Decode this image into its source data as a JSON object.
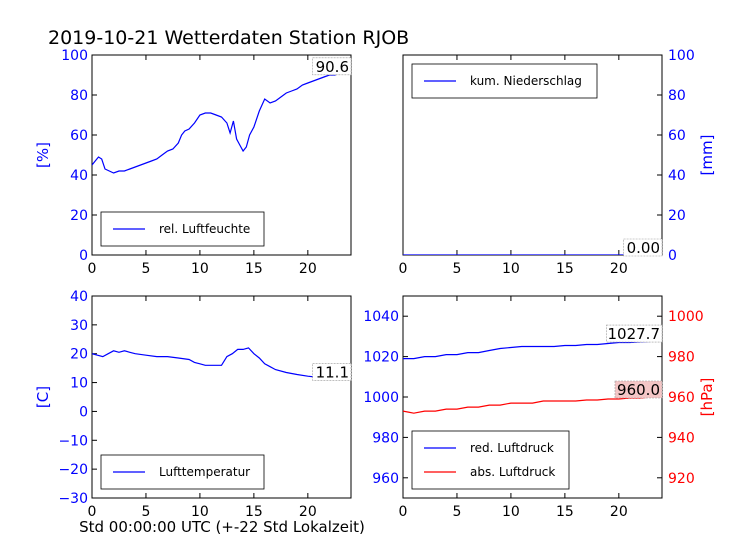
{
  "title": "2019-10-21 Wetterdaten Station RJOB",
  "xlabel": "Std 00:00:00 UTC (+-22 Std Lokalzeit)",
  "colors": {
    "blue": "#0000ff",
    "red": "#ff0000",
    "black": "#000000",
    "value_box": "#f4c6c6"
  },
  "chart_data": [
    {
      "type": "line",
      "panel": "top-left",
      "ylabel": "[%]",
      "xlim": [
        0,
        24
      ],
      "ylim": [
        0,
        100
      ],
      "xticks": [
        "0",
        "5",
        "10",
        "15",
        "20"
      ],
      "yticks": [
        "0",
        "20",
        "40",
        "60",
        "80",
        "100"
      ],
      "legend": "bottom-left",
      "annotation": "90.6",
      "series": [
        {
          "name": "rel. Luftfeuchte",
          "color": "#0000ff",
          "x": [
            0,
            0.3,
            0.6,
            0.9,
            1.2,
            1.6,
            2.0,
            2.5,
            3.0,
            3.5,
            4.0,
            4.5,
            5.0,
            5.5,
            6.0,
            6.5,
            7.0,
            7.5,
            8.0,
            8.3,
            8.6,
            9.0,
            9.5,
            10.0,
            10.5,
            11.0,
            11.5,
            12.0,
            12.5,
            12.8,
            13.1,
            13.4,
            13.7,
            14.0,
            14.3,
            14.6,
            15.0,
            15.5,
            16.0,
            16.5,
            17.0,
            17.5,
            18.0,
            18.5,
            19.0,
            19.5,
            20.0,
            20.5,
            21.0,
            21.5,
            22.0,
            22.5,
            23.0,
            23.5,
            24.0
          ],
          "y": [
            45,
            47,
            49,
            48,
            43,
            42,
            41,
            42,
            42,
            43,
            44,
            45,
            46,
            47,
            48,
            50,
            52,
            53,
            56,
            60,
            62,
            63,
            66,
            70,
            71,
            71,
            70,
            69,
            66,
            61,
            67,
            58,
            55,
            52,
            54,
            60,
            64,
            72,
            78,
            76,
            77,
            79,
            81,
            82,
            83,
            85,
            86,
            87,
            88,
            89,
            90,
            90,
            91,
            90.6,
            90.6
          ]
        }
      ]
    },
    {
      "type": "line",
      "panel": "top-right",
      "ylabel": "[mm]",
      "xlim": [
        0,
        24
      ],
      "ylim": [
        0,
        100
      ],
      "xticks": [
        "0",
        "5",
        "10",
        "15",
        "20"
      ],
      "yticks": [
        "0",
        "20",
        "40",
        "60",
        "80",
        "100"
      ],
      "legend": "top-left",
      "annotation": "0.00",
      "series": [
        {
          "name": "kum. Niederschlag",
          "color": "#0000ff",
          "x": [
            0,
            24
          ],
          "y": [
            0,
            0
          ]
        }
      ]
    },
    {
      "type": "line",
      "panel": "bottom-left",
      "ylabel": "[C]",
      "xlim": [
        0,
        24
      ],
      "ylim": [
        -30,
        40
      ],
      "xticks": [
        "0",
        "5",
        "10",
        "15",
        "20"
      ],
      "yticks": [
        "−30",
        "−20",
        "−10",
        "0",
        "10",
        "20",
        "30",
        "40"
      ],
      "legend": "bottom-left",
      "annotation": "11.1",
      "series": [
        {
          "name": "Lufttemperatur",
          "color": "#0000ff",
          "x": [
            0,
            0.5,
            1.0,
            1.5,
            2.0,
            2.5,
            3.0,
            3.5,
            4.0,
            5.0,
            6.0,
            7.0,
            8.0,
            9.0,
            9.5,
            10.0,
            10.5,
            11.0,
            11.5,
            12.0,
            12.5,
            13.0,
            13.5,
            14.0,
            14.5,
            15.0,
            15.5,
            16.0,
            16.5,
            17.0,
            18.0,
            19.0,
            20.0,
            21.0,
            22.0,
            23.0,
            24.0
          ],
          "y": [
            20,
            19.5,
            19,
            20,
            21,
            20.5,
            21,
            20.5,
            20,
            19.5,
            19,
            19,
            18.5,
            18,
            17,
            16.5,
            16,
            16,
            16,
            16,
            19,
            20,
            21.5,
            21.5,
            22,
            20,
            18.5,
            16.5,
            15.5,
            14.5,
            13.5,
            12.8,
            12.2,
            11.8,
            11.5,
            11.2,
            11.1
          ]
        }
      ]
    },
    {
      "type": "line",
      "panel": "bottom-right",
      "ylabel": "[hPa]",
      "xlim": [
        0,
        24
      ],
      "ylim": [
        950,
        1050
      ],
      "ylim_right": [
        910,
        1010
      ],
      "xticks": [
        "0",
        "5",
        "10",
        "15",
        "20"
      ],
      "yticks": [
        "960",
        "980",
        "1000",
        "1020",
        "1040"
      ],
      "yticks_right": [
        "920",
        "940",
        "960",
        "980",
        "1000"
      ],
      "legend": "bottom-left",
      "annotations": [
        "1027.7",
        "960.0"
      ],
      "series": [
        {
          "name": "red. Luftdruck",
          "color": "#0000ff",
          "axis": "left",
          "x": [
            0,
            1,
            2,
            3,
            4,
            5,
            6,
            7,
            8,
            9,
            10,
            11,
            12,
            13,
            14,
            15,
            16,
            17,
            18,
            19,
            20,
            21,
            22,
            23,
            24
          ],
          "y": [
            1019,
            1019,
            1020,
            1020,
            1021,
            1021,
            1022,
            1022,
            1023,
            1024,
            1024.5,
            1025,
            1025,
            1025,
            1025,
            1025.5,
            1025.5,
            1026,
            1026,
            1026.5,
            1027,
            1027,
            1027.3,
            1027.5,
            1027.7
          ]
        },
        {
          "name": "abs. Luftdruck",
          "color": "#ff0000",
          "axis": "right",
          "x": [
            0,
            0.5,
            1,
            2,
            3,
            4,
            5,
            6,
            7,
            8,
            9,
            10,
            11,
            12,
            13,
            14,
            15,
            16,
            17,
            18,
            19,
            20,
            21,
            22,
            23,
            24
          ],
          "y": [
            953,
            952.5,
            952,
            953,
            953,
            954,
            954,
            955,
            955,
            956,
            956,
            957,
            957,
            957,
            958,
            958,
            958,
            958,
            958.5,
            958.5,
            959,
            959,
            959.5,
            959.5,
            960,
            960
          ]
        }
      ]
    }
  ]
}
